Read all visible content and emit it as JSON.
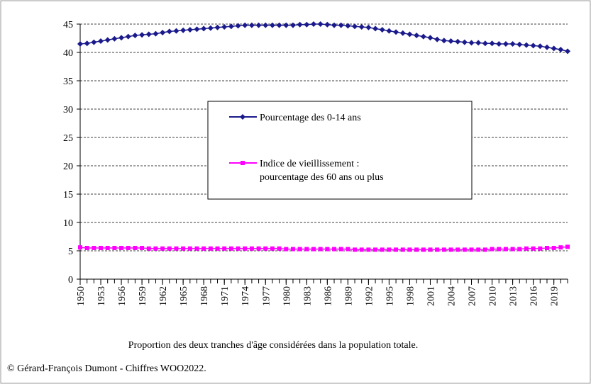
{
  "chart_data": {
    "type": "line",
    "x": [
      1950,
      1951,
      1952,
      1953,
      1954,
      1955,
      1956,
      1957,
      1958,
      1959,
      1960,
      1961,
      1962,
      1963,
      1964,
      1965,
      1966,
      1967,
      1968,
      1969,
      1970,
      1971,
      1972,
      1973,
      1974,
      1975,
      1976,
      1977,
      1978,
      1979,
      1980,
      1981,
      1982,
      1983,
      1984,
      1985,
      1986,
      1987,
      1988,
      1989,
      1990,
      1991,
      1992,
      1993,
      1994,
      1995,
      1996,
      1997,
      1998,
      1999,
      2000,
      2001,
      2002,
      2003,
      2004,
      2005,
      2006,
      2007,
      2008,
      2009,
      2010,
      2011,
      2012,
      2013,
      2014,
      2015,
      2016,
      2017,
      2018,
      2019,
      2020,
      2021
    ],
    "series": [
      {
        "name": "Pourcentage des 0-14 ans",
        "color": "#1a1a8c",
        "marker": "diamond",
        "values": [
          41.5,
          41.6,
          41.8,
          42.0,
          42.2,
          42.4,
          42.6,
          42.8,
          43.0,
          43.1,
          43.2,
          43.3,
          43.5,
          43.7,
          43.8,
          43.9,
          44.0,
          44.1,
          44.2,
          44.3,
          44.4,
          44.5,
          44.6,
          44.7,
          44.8,
          44.8,
          44.8,
          44.8,
          44.8,
          44.8,
          44.8,
          44.8,
          44.9,
          44.9,
          45.0,
          45.0,
          44.9,
          44.8,
          44.8,
          44.7,
          44.6,
          44.5,
          44.4,
          44.2,
          44.0,
          43.8,
          43.6,
          43.4,
          43.2,
          43.0,
          42.8,
          42.6,
          42.3,
          42.1,
          42.0,
          41.9,
          41.8,
          41.7,
          41.7,
          41.6,
          41.6,
          41.5,
          41.5,
          41.5,
          41.4,
          41.3,
          41.2,
          41.1,
          40.9,
          40.7,
          40.5,
          40.2
        ]
      },
      {
        "name": "Indice de vieillissement : pourcentage des 60 ans ou plus",
        "color": "#ff00ff",
        "marker": "square",
        "values": [
          5.6,
          5.5,
          5.5,
          5.5,
          5.5,
          5.5,
          5.5,
          5.5,
          5.5,
          5.5,
          5.4,
          5.4,
          5.4,
          5.4,
          5.4,
          5.4,
          5.4,
          5.4,
          5.4,
          5.4,
          5.4,
          5.4,
          5.4,
          5.4,
          5.4,
          5.4,
          5.4,
          5.4,
          5.4,
          5.4,
          5.3,
          5.3,
          5.3,
          5.3,
          5.3,
          5.3,
          5.3,
          5.3,
          5.3,
          5.3,
          5.2,
          5.2,
          5.2,
          5.2,
          5.2,
          5.2,
          5.2,
          5.2,
          5.2,
          5.2,
          5.2,
          5.2,
          5.2,
          5.2,
          5.2,
          5.2,
          5.2,
          5.2,
          5.2,
          5.2,
          5.3,
          5.3,
          5.3,
          5.3,
          5.3,
          5.4,
          5.4,
          5.4,
          5.5,
          5.5,
          5.6,
          5.7
        ]
      }
    ],
    "xlim": [
      1950,
      2021
    ],
    "xticks": [
      1950,
      1953,
      1956,
      1959,
      1962,
      1965,
      1968,
      1971,
      1974,
      1977,
      1980,
      1983,
      1986,
      1989,
      1992,
      1995,
      1998,
      2001,
      2004,
      2007,
      2010,
      2013,
      2016,
      2019
    ],
    "ylim": [
      0,
      45
    ],
    "yticks": [
      0,
      5,
      10,
      15,
      20,
      25,
      30,
      35,
      40,
      45
    ],
    "grid": true,
    "legend": "center",
    "caption": "Proportion des deux tranches d'âge considérées dans la population totale.",
    "credit": "© Gérard-François Dumont - Chiffres WOO2022."
  }
}
